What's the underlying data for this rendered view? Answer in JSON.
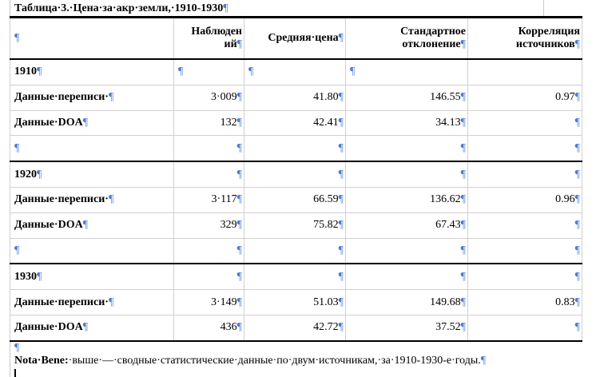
{
  "title": "Таблица·3.·Цена·за·акр·земли,·1910-1930",
  "pilcrow": "¶",
  "headers": [
    "",
    "Наблюден ий",
    "Средняя·цена",
    "Стандартное отклонение",
    "Корреляция источников"
  ],
  "years": [
    {
      "label": "1910",
      "rows": [
        {
          "label": "Данные·переписи·",
          "obs": "3·009",
          "mean": "41.80",
          "sd": "146.55",
          "corr": "0.97"
        },
        {
          "label": "Данные·DOA",
          "obs": "132",
          "mean": "42.41",
          "sd": "34.13",
          "corr": ""
        }
      ]
    },
    {
      "label": "1920",
      "rows": [
        {
          "label": "Данные·переписи·",
          "obs": "3·117",
          "mean": "66.59",
          "sd": "136.62",
          "corr": "0.96"
        },
        {
          "label": "Данные·DOA",
          "obs": "329",
          "mean": "75.82",
          "sd": "67.43",
          "corr": ""
        }
      ]
    },
    {
      "label": "1930",
      "rows": [
        {
          "label": "Данные·переписи·",
          "obs": "3·149",
          "mean": "51.03",
          "sd": "149.68",
          "corr": "0.83"
        },
        {
          "label": "Данные·DOA",
          "obs": "436",
          "mean": "42.72",
          "sd": "37.52",
          "corr": ""
        }
      ]
    }
  ],
  "note": {
    "label": "Nota·Bene:",
    "text": "·выше·—·сводные·статистические·данные·по·двум·источникам,·за·1910-1930-е·годы."
  }
}
